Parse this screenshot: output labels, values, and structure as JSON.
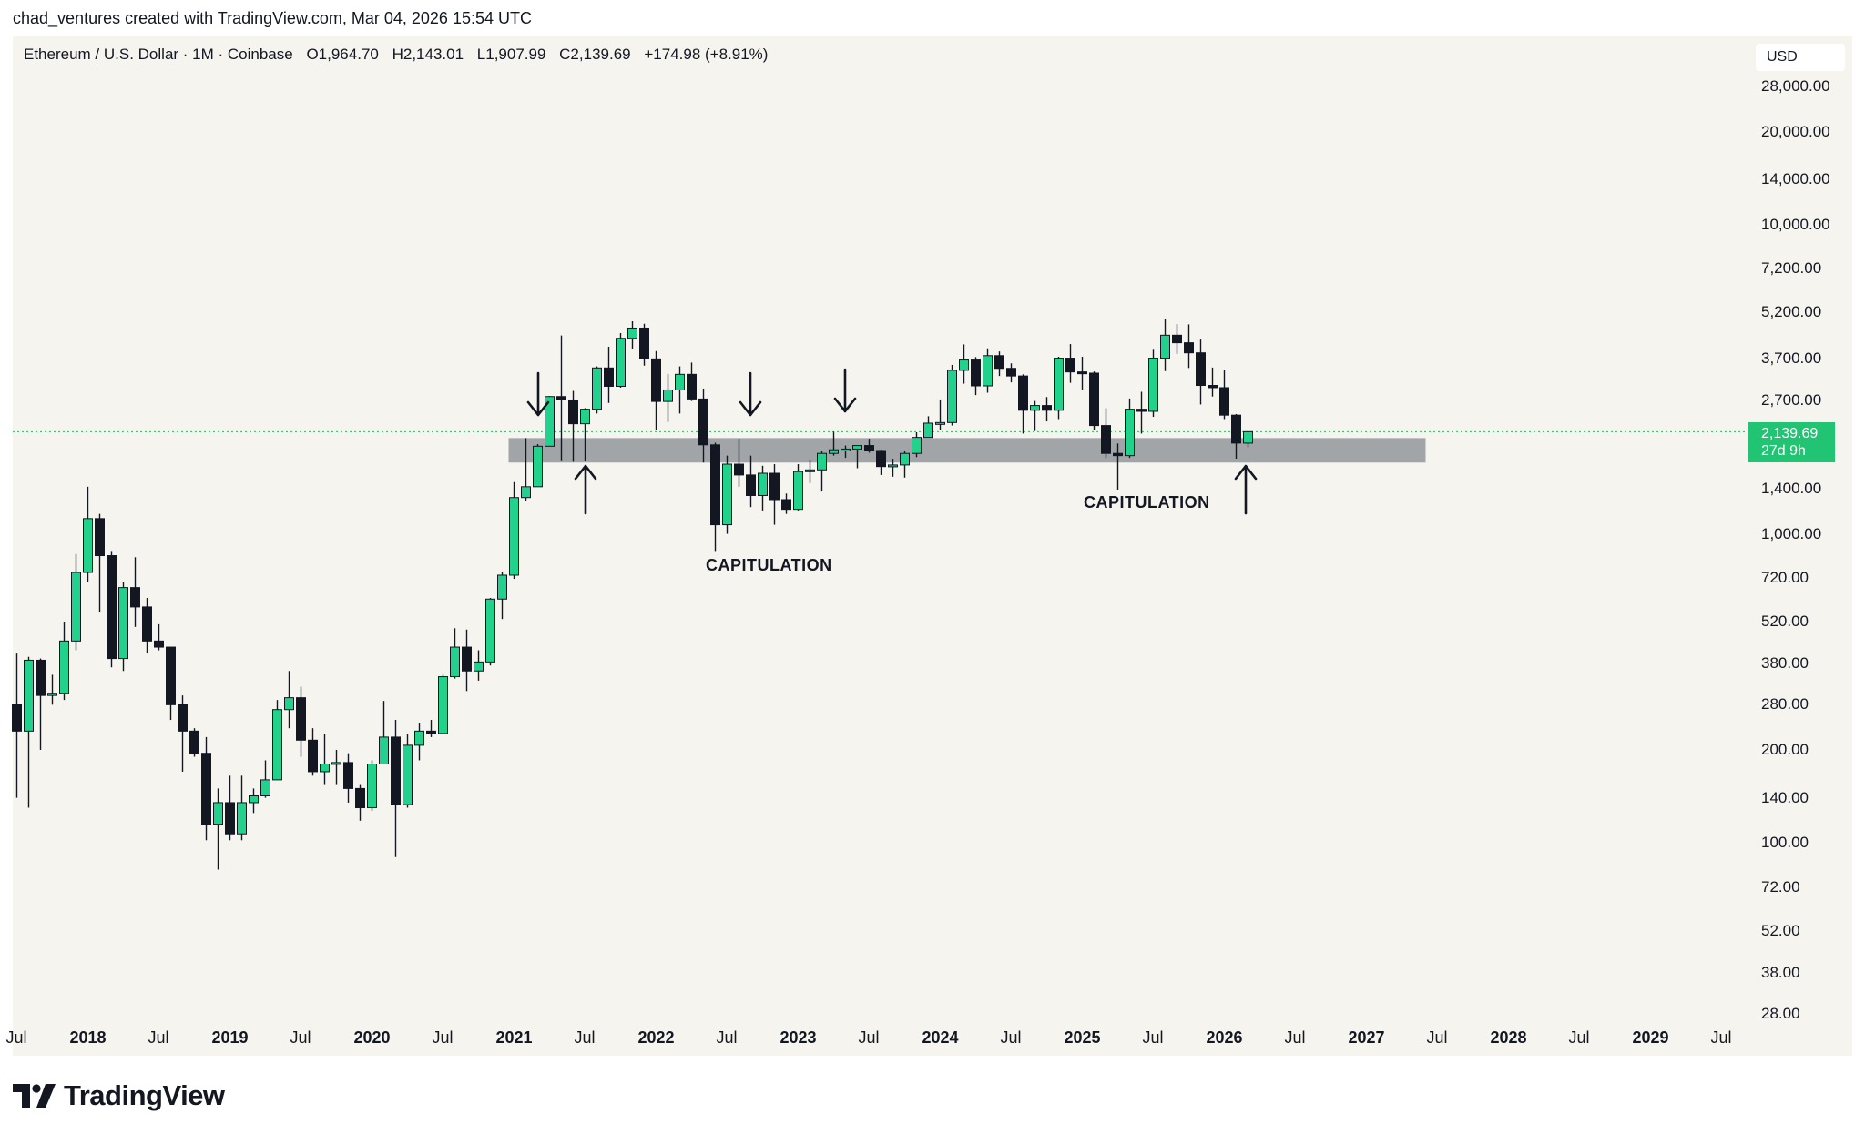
{
  "header": {
    "attribution": "chad_ventures created with TradingView.com, Mar 04, 2026 15:54 UTC"
  },
  "legend": {
    "symbol": "Ethereum / U.S. Dollar · 1M · Coinbase",
    "open": "O1,964.70",
    "high": "H2,143.01",
    "low": "L1,907.99",
    "close": "C2,139.69",
    "change": "+174.98 (+8.91%)"
  },
  "currency_button": "USD",
  "price_tag": {
    "price": "2,139.69",
    "countdown": "27d 9h"
  },
  "annotations": {
    "capitulation_1": "CAPITULATION",
    "capitulation_2": "CAPITULATION"
  },
  "brand": {
    "name": "TradingView"
  },
  "colors": {
    "up": "#22d18b",
    "down": "#131722",
    "zone": "#a2a5a8",
    "price_line": "#22c55e",
    "background": "#f6f4ef"
  },
  "chart_data": {
    "type": "candlestick",
    "y_scale": "log",
    "y_ticks": [
      "28,000.00",
      "20,000.00",
      "14,000.00",
      "10,000.00",
      "7,200.00",
      "5,200.00",
      "3,700.00",
      "2,700.00",
      "1,400.00",
      "1,000.00",
      "720.00",
      "520.00",
      "380.00",
      "280.00",
      "200.00",
      "140.00",
      "100.00",
      "72.00",
      "52.00",
      "38.00",
      "28.00"
    ],
    "x_ticks": [
      {
        "label": "Jul",
        "bold": false
      },
      {
        "label": "2018",
        "bold": true
      },
      {
        "label": "Jul",
        "bold": false
      },
      {
        "label": "2019",
        "bold": true
      },
      {
        "label": "Jul",
        "bold": false
      },
      {
        "label": "2020",
        "bold": true
      },
      {
        "label": "Jul",
        "bold": false
      },
      {
        "label": "2021",
        "bold": true
      },
      {
        "label": "Jul",
        "bold": false
      },
      {
        "label": "2022",
        "bold": true
      },
      {
        "label": "Jul",
        "bold": false
      },
      {
        "label": "2023",
        "bold": true
      },
      {
        "label": "Jul",
        "bold": false
      },
      {
        "label": "2024",
        "bold": true
      },
      {
        "label": "Jul",
        "bold": false
      },
      {
        "label": "2025",
        "bold": true
      },
      {
        "label": "Jul",
        "bold": false
      },
      {
        "label": "2026",
        "bold": true
      },
      {
        "label": "Jul",
        "bold": false
      },
      {
        "label": "2027",
        "bold": true
      },
      {
        "label": "Jul",
        "bold": false
      },
      {
        "label": "2028",
        "bold": true
      },
      {
        "label": "Jul",
        "bold": false
      },
      {
        "label": "2029",
        "bold": true
      },
      {
        "label": "Jul",
        "bold": false
      }
    ],
    "support_zone": {
      "low": 1700,
      "high": 2040,
      "from": "2021-01",
      "to": "2027-06"
    },
    "current_price": 2139.69,
    "candles": [
      {
        "d": "2017-07",
        "o": 280,
        "h": 410,
        "l": 140,
        "c": 230
      },
      {
        "d": "2017-08",
        "o": 230,
        "h": 400,
        "l": 130,
        "c": 390
      },
      {
        "d": "2017-09",
        "o": 390,
        "h": 395,
        "l": 200,
        "c": 300
      },
      {
        "d": "2017-10",
        "o": 300,
        "h": 350,
        "l": 280,
        "c": 305
      },
      {
        "d": "2017-11",
        "o": 305,
        "h": 520,
        "l": 290,
        "c": 450
      },
      {
        "d": "2017-12",
        "o": 450,
        "h": 860,
        "l": 420,
        "c": 750
      },
      {
        "d": "2018-01",
        "o": 750,
        "h": 1420,
        "l": 700,
        "c": 1120
      },
      {
        "d": "2018-02",
        "o": 1120,
        "h": 1160,
        "l": 560,
        "c": 850
      },
      {
        "d": "2018-03",
        "o": 850,
        "h": 880,
        "l": 370,
        "c": 395
      },
      {
        "d": "2018-04",
        "o": 395,
        "h": 700,
        "l": 360,
        "c": 670
      },
      {
        "d": "2018-05",
        "o": 670,
        "h": 840,
        "l": 500,
        "c": 580
      },
      {
        "d": "2018-06",
        "o": 580,
        "h": 620,
        "l": 410,
        "c": 450
      },
      {
        "d": "2018-07",
        "o": 450,
        "h": 510,
        "l": 420,
        "c": 430
      },
      {
        "d": "2018-08",
        "o": 430,
        "h": 430,
        "l": 250,
        "c": 280
      },
      {
        "d": "2018-09",
        "o": 280,
        "h": 300,
        "l": 170,
        "c": 230
      },
      {
        "d": "2018-10",
        "o": 230,
        "h": 235,
        "l": 190,
        "c": 195
      },
      {
        "d": "2018-11",
        "o": 195,
        "h": 220,
        "l": 102,
        "c": 115
      },
      {
        "d": "2018-12",
        "o": 115,
        "h": 150,
        "l": 82,
        "c": 135
      },
      {
        "d": "2019-01",
        "o": 135,
        "h": 165,
        "l": 102,
        "c": 107
      },
      {
        "d": "2019-02",
        "o": 107,
        "h": 165,
        "l": 102,
        "c": 135
      },
      {
        "d": "2019-03",
        "o": 135,
        "h": 150,
        "l": 125,
        "c": 142
      },
      {
        "d": "2019-04",
        "o": 142,
        "h": 185,
        "l": 140,
        "c": 160
      },
      {
        "d": "2019-05",
        "o": 160,
        "h": 290,
        "l": 160,
        "c": 270
      },
      {
        "d": "2019-06",
        "o": 270,
        "h": 360,
        "l": 235,
        "c": 295
      },
      {
        "d": "2019-07",
        "o": 295,
        "h": 320,
        "l": 190,
        "c": 215
      },
      {
        "d": "2019-08",
        "o": 215,
        "h": 235,
        "l": 165,
        "c": 170
      },
      {
        "d": "2019-09",
        "o": 170,
        "h": 225,
        "l": 155,
        "c": 180
      },
      {
        "d": "2019-10",
        "o": 180,
        "h": 200,
        "l": 155,
        "c": 182
      },
      {
        "d": "2019-11",
        "o": 182,
        "h": 195,
        "l": 135,
        "c": 150
      },
      {
        "d": "2019-12",
        "o": 150,
        "h": 155,
        "l": 118,
        "c": 130
      },
      {
        "d": "2020-01",
        "o": 130,
        "h": 185,
        "l": 127,
        "c": 180
      },
      {
        "d": "2020-02",
        "o": 180,
        "h": 288,
        "l": 180,
        "c": 220
      },
      {
        "d": "2020-03",
        "o": 220,
        "h": 250,
        "l": 90,
        "c": 133
      },
      {
        "d": "2020-04",
        "o": 133,
        "h": 225,
        "l": 130,
        "c": 207
      },
      {
        "d": "2020-05",
        "o": 207,
        "h": 245,
        "l": 185,
        "c": 230
      },
      {
        "d": "2020-06",
        "o": 230,
        "h": 250,
        "l": 220,
        "c": 226
      },
      {
        "d": "2020-07",
        "o": 226,
        "h": 350,
        "l": 225,
        "c": 345
      },
      {
        "d": "2020-08",
        "o": 345,
        "h": 495,
        "l": 340,
        "c": 430
      },
      {
        "d": "2020-09",
        "o": 430,
        "h": 490,
        "l": 310,
        "c": 360
      },
      {
        "d": "2020-10",
        "o": 360,
        "h": 420,
        "l": 335,
        "c": 385
      },
      {
        "d": "2020-11",
        "o": 385,
        "h": 620,
        "l": 375,
        "c": 615
      },
      {
        "d": "2020-12",
        "o": 615,
        "h": 755,
        "l": 530,
        "c": 735
      },
      {
        "d": "2021-01",
        "o": 735,
        "h": 1470,
        "l": 715,
        "c": 1310
      },
      {
        "d": "2021-02",
        "o": 1310,
        "h": 2040,
        "l": 1280,
        "c": 1420
      },
      {
        "d": "2021-03",
        "o": 1420,
        "h": 1950,
        "l": 1420,
        "c": 1920
      },
      {
        "d": "2021-04",
        "o": 1920,
        "h": 2790,
        "l": 1920,
        "c": 2780
      },
      {
        "d": "2021-05",
        "o": 2780,
        "h": 4380,
        "l": 1730,
        "c": 2710
      },
      {
        "d": "2021-06",
        "o": 2710,
        "h": 2900,
        "l": 1710,
        "c": 2270
      },
      {
        "d": "2021-07",
        "o": 2270,
        "h": 2550,
        "l": 1720,
        "c": 2530
      },
      {
        "d": "2021-08",
        "o": 2530,
        "h": 3480,
        "l": 2450,
        "c": 3440
      },
      {
        "d": "2021-09",
        "o": 3440,
        "h": 4030,
        "l": 2650,
        "c": 3000
      },
      {
        "d": "2021-10",
        "o": 3000,
        "h": 4460,
        "l": 2970,
        "c": 4290
      },
      {
        "d": "2021-11",
        "o": 4290,
        "h": 4870,
        "l": 3950,
        "c": 4630
      },
      {
        "d": "2021-12",
        "o": 4630,
        "h": 4780,
        "l": 3500,
        "c": 3680
      },
      {
        "d": "2022-01",
        "o": 3680,
        "h": 3900,
        "l": 2160,
        "c": 2680
      },
      {
        "d": "2022-02",
        "o": 2680,
        "h": 3290,
        "l": 2300,
        "c": 2920
      },
      {
        "d": "2022-03",
        "o": 2920,
        "h": 3480,
        "l": 2450,
        "c": 3280
      },
      {
        "d": "2022-04",
        "o": 3280,
        "h": 3580,
        "l": 2690,
        "c": 2730
      },
      {
        "d": "2022-05",
        "o": 2730,
        "h": 2950,
        "l": 1700,
        "c": 1940
      },
      {
        "d": "2022-06",
        "o": 1940,
        "h": 1970,
        "l": 880,
        "c": 1070
      },
      {
        "d": "2022-07",
        "o": 1070,
        "h": 1790,
        "l": 1000,
        "c": 1680
      },
      {
        "d": "2022-08",
        "o": 1680,
        "h": 2030,
        "l": 1420,
        "c": 1550
      },
      {
        "d": "2022-09",
        "o": 1550,
        "h": 1790,
        "l": 1220,
        "c": 1330
      },
      {
        "d": "2022-10",
        "o": 1330,
        "h": 1660,
        "l": 1190,
        "c": 1570
      },
      {
        "d": "2022-11",
        "o": 1570,
        "h": 1680,
        "l": 1070,
        "c": 1290
      },
      {
        "d": "2022-12",
        "o": 1290,
        "h": 1350,
        "l": 1160,
        "c": 1200
      },
      {
        "d": "2023-01",
        "o": 1200,
        "h": 1680,
        "l": 1190,
        "c": 1590
      },
      {
        "d": "2023-02",
        "o": 1590,
        "h": 1740,
        "l": 1460,
        "c": 1610
      },
      {
        "d": "2023-03",
        "o": 1610,
        "h": 1860,
        "l": 1370,
        "c": 1820
      },
      {
        "d": "2023-04",
        "o": 1820,
        "h": 2140,
        "l": 1790,
        "c": 1870
      },
      {
        "d": "2023-05",
        "o": 1870,
        "h": 1930,
        "l": 1760,
        "c": 1880
      },
      {
        "d": "2023-06",
        "o": 1880,
        "h": 1930,
        "l": 1630,
        "c": 1930
      },
      {
        "d": "2023-07",
        "o": 1930,
        "h": 2030,
        "l": 1830,
        "c": 1860
      },
      {
        "d": "2023-08",
        "o": 1860,
        "h": 1870,
        "l": 1550,
        "c": 1650
      },
      {
        "d": "2023-09",
        "o": 1650,
        "h": 1750,
        "l": 1530,
        "c": 1670
      },
      {
        "d": "2023-10",
        "o": 1670,
        "h": 1860,
        "l": 1520,
        "c": 1820
      },
      {
        "d": "2023-11",
        "o": 1820,
        "h": 2130,
        "l": 1770,
        "c": 2050
      },
      {
        "d": "2023-12",
        "o": 2050,
        "h": 2400,
        "l": 2050,
        "c": 2280
      },
      {
        "d": "2024-01",
        "o": 2280,
        "h": 2720,
        "l": 2170,
        "c": 2290
      },
      {
        "d": "2024-02",
        "o": 2290,
        "h": 3520,
        "l": 2240,
        "c": 3380
      },
      {
        "d": "2024-03",
        "o": 3380,
        "h": 4100,
        "l": 3060,
        "c": 3650
      },
      {
        "d": "2024-04",
        "o": 3650,
        "h": 3730,
        "l": 2810,
        "c": 3010
      },
      {
        "d": "2024-05",
        "o": 3010,
        "h": 3980,
        "l": 2860,
        "c": 3770
      },
      {
        "d": "2024-06",
        "o": 3770,
        "h": 3890,
        "l": 3240,
        "c": 3430
      },
      {
        "d": "2024-07",
        "o": 3430,
        "h": 3560,
        "l": 3090,
        "c": 3240
      },
      {
        "d": "2024-08",
        "o": 3240,
        "h": 3280,
        "l": 2110,
        "c": 2510
      },
      {
        "d": "2024-09",
        "o": 2510,
        "h": 2690,
        "l": 2150,
        "c": 2600
      },
      {
        "d": "2024-10",
        "o": 2600,
        "h": 2770,
        "l": 2310,
        "c": 2510
      },
      {
        "d": "2024-11",
        "o": 2510,
        "h": 3740,
        "l": 2350,
        "c": 3700
      },
      {
        "d": "2024-12",
        "o": 3700,
        "h": 4110,
        "l": 3080,
        "c": 3340
      },
      {
        "d": "2025-01",
        "o": 3340,
        "h": 3740,
        "l": 2930,
        "c": 3310
      },
      {
        "d": "2025-02",
        "o": 3310,
        "h": 3350,
        "l": 2160,
        "c": 2240
      },
      {
        "d": "2025-03",
        "o": 2240,
        "h": 2550,
        "l": 1760,
        "c": 1820
      },
      {
        "d": "2025-04",
        "o": 1820,
        "h": 1960,
        "l": 1390,
        "c": 1790
      },
      {
        "d": "2025-05",
        "o": 1790,
        "h": 2740,
        "l": 1760,
        "c": 2530
      },
      {
        "d": "2025-06",
        "o": 2530,
        "h": 2880,
        "l": 2110,
        "c": 2490
      },
      {
        "d": "2025-07",
        "o": 2490,
        "h": 3940,
        "l": 2390,
        "c": 3700
      },
      {
        "d": "2025-08",
        "o": 3700,
        "h": 4950,
        "l": 3360,
        "c": 4390
      },
      {
        "d": "2025-09",
        "o": 4390,
        "h": 4770,
        "l": 3820,
        "c": 4150
      },
      {
        "d": "2025-10",
        "o": 4150,
        "h": 4760,
        "l": 3440,
        "c": 3850
      },
      {
        "d": "2025-11",
        "o": 3850,
        "h": 4250,
        "l": 2620,
        "c": 3020
      },
      {
        "d": "2025-12",
        "o": 3020,
        "h": 3450,
        "l": 2780,
        "c": 2970
      },
      {
        "d": "2026-01",
        "o": 2970,
        "h": 3400,
        "l": 2350,
        "c": 2420
      },
      {
        "d": "2026-02",
        "o": 2420,
        "h": 2440,
        "l": 1750,
        "c": 1965
      },
      {
        "d": "2026-03",
        "o": 1964.7,
        "h": 2143.01,
        "l": 1907.99,
        "c": 2139.69
      }
    ]
  }
}
